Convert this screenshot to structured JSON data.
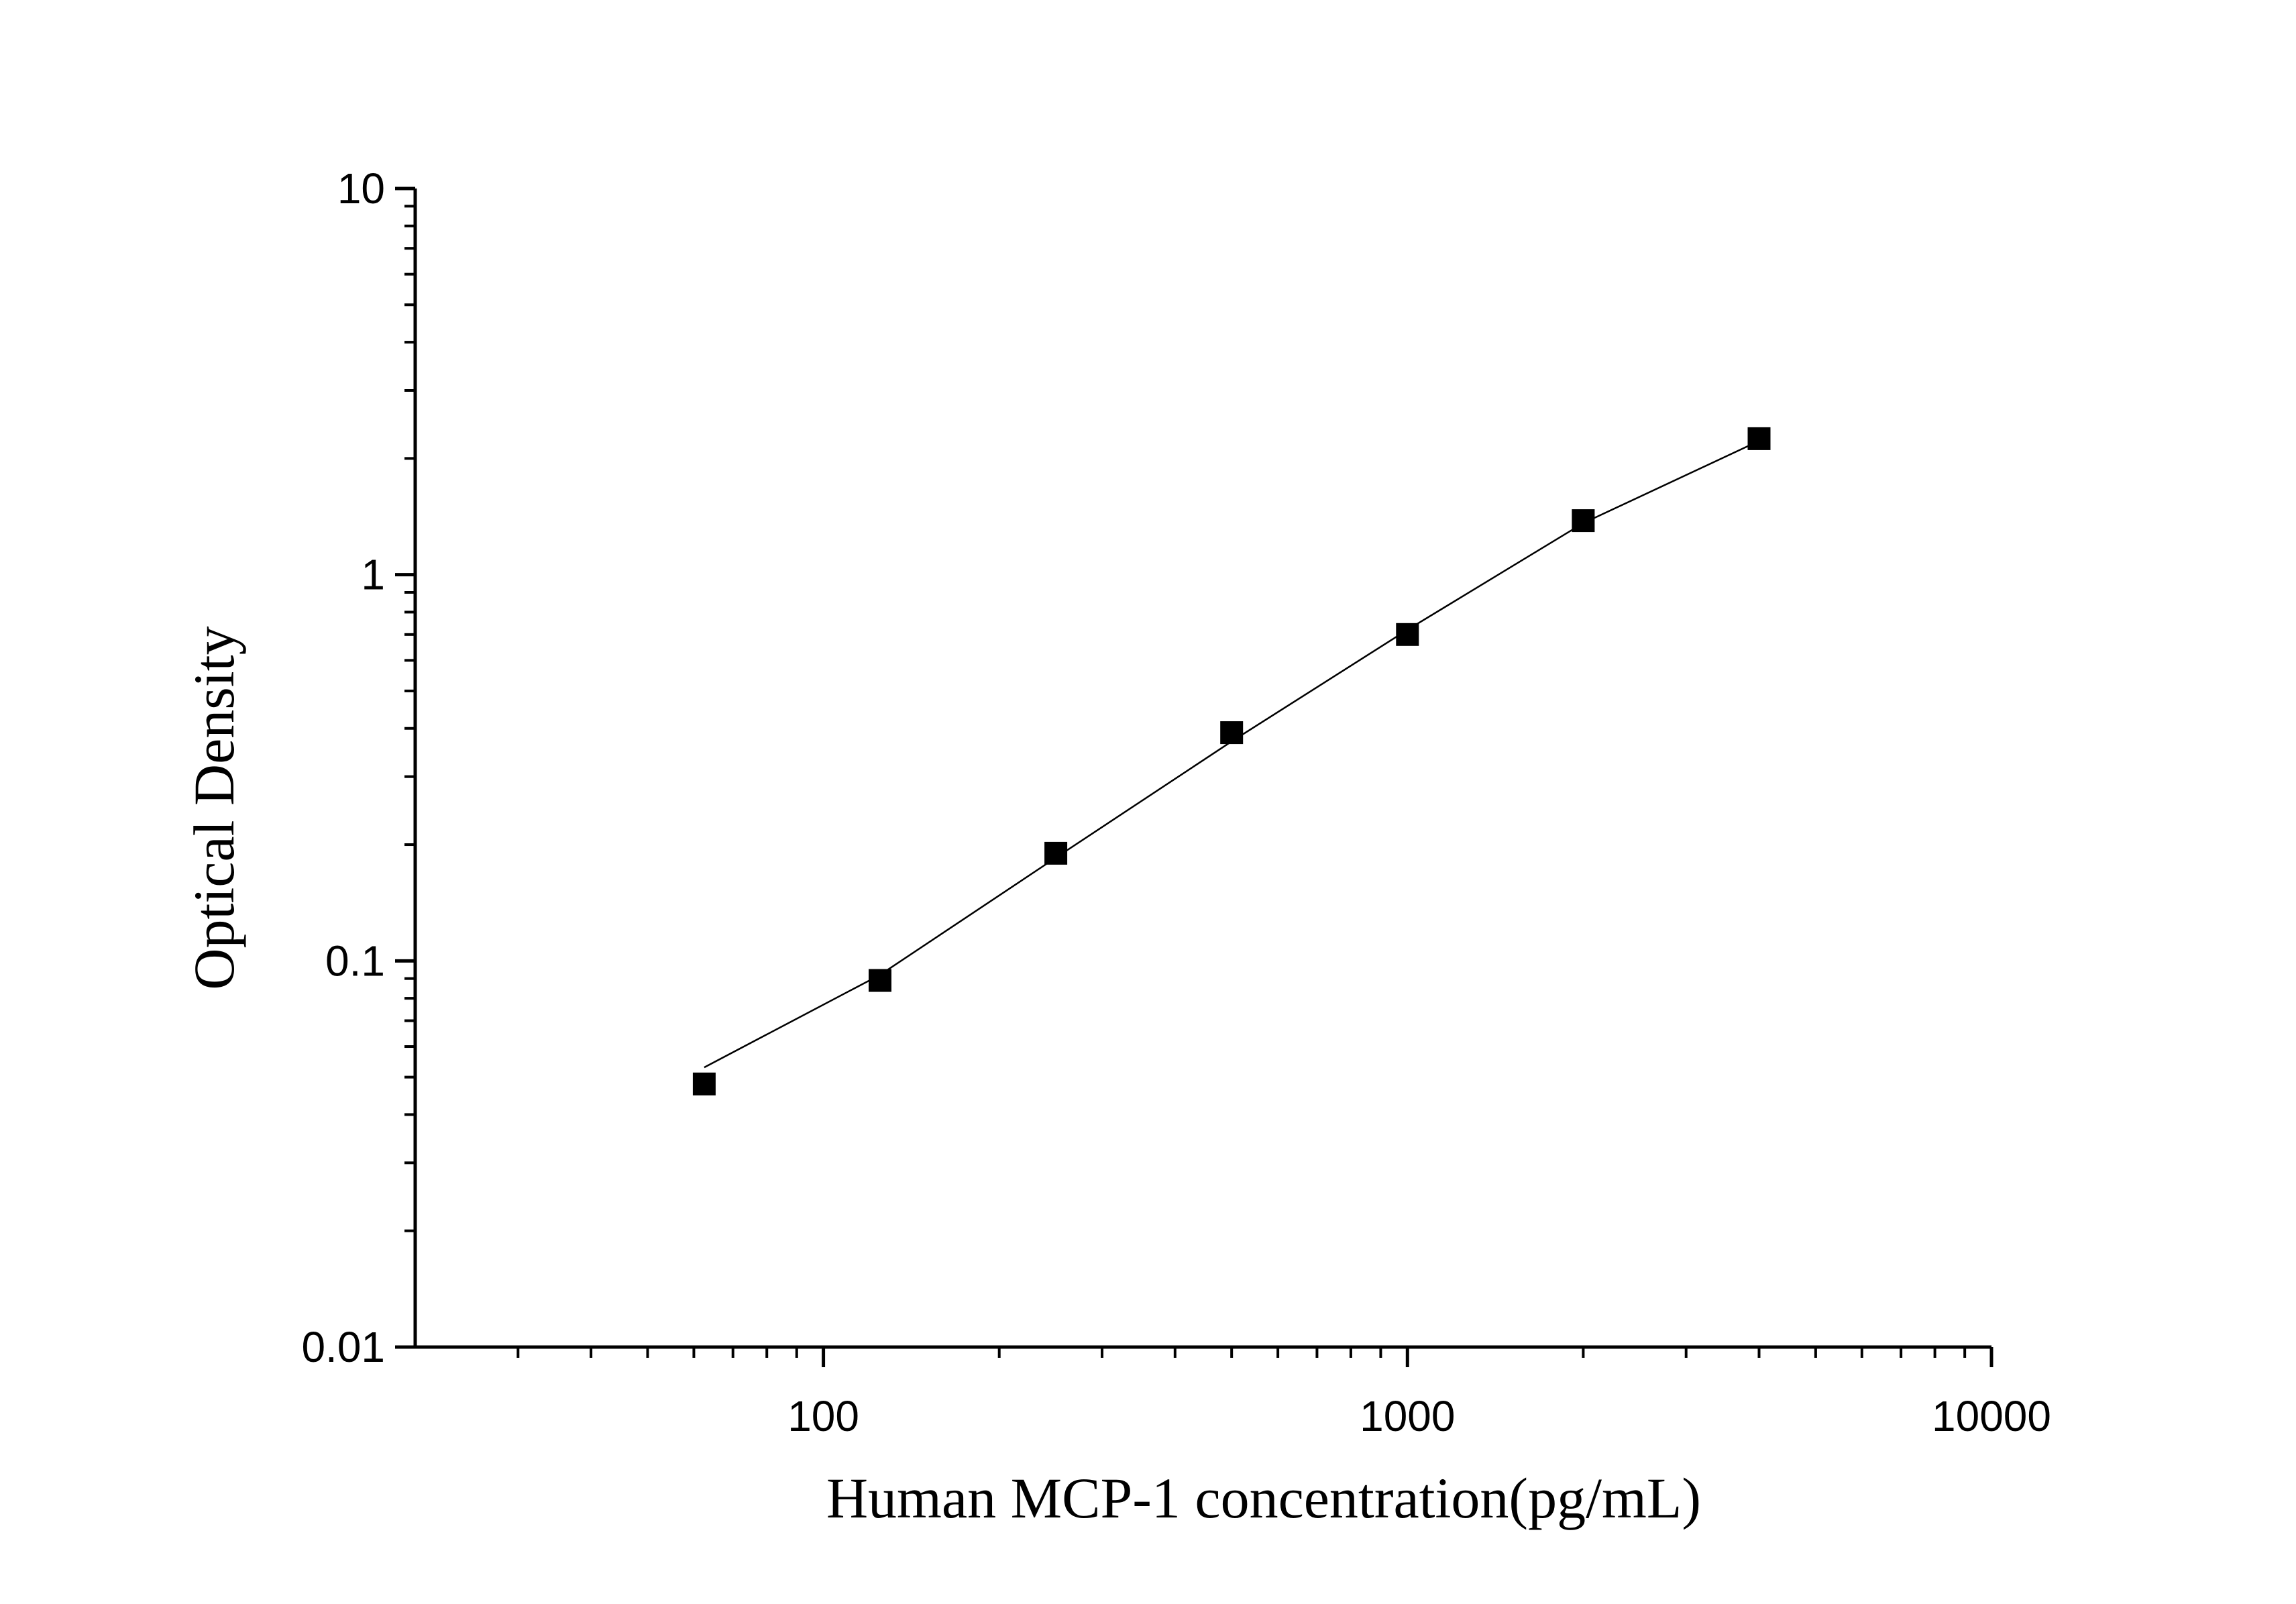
{
  "chart_data": {
    "type": "scatter",
    "title": "",
    "xlabel": "Human MCP-1 concentration(pg/mL)",
    "ylabel": "Optical Density",
    "x_scale": "log",
    "y_scale": "log",
    "xlim": [
      20,
      10000
    ],
    "ylim": [
      0.01,
      10
    ],
    "x_ticks": [
      {
        "value": 100,
        "label": "100"
      },
      {
        "value": 1000,
        "label": "1000"
      },
      {
        "value": 10000,
        "label": "10000"
      }
    ],
    "y_ticks": [
      {
        "value": 0.01,
        "label": "0.01"
      },
      {
        "value": 0.1,
        "label": "0.1"
      },
      {
        "value": 1,
        "label": "1"
      },
      {
        "value": 10,
        "label": "10"
      }
    ],
    "grid": false,
    "legend": "none",
    "series": [
      {
        "marker": "square",
        "color": "#000000",
        "points": [
          {
            "x": 62.5,
            "y": 0.048
          },
          {
            "x": 125,
            "y": 0.089
          },
          {
            "x": 250,
            "y": 0.19
          },
          {
            "x": 500,
            "y": 0.39
          },
          {
            "x": 1000,
            "y": 0.7
          },
          {
            "x": 2000,
            "y": 1.38
          },
          {
            "x": 4000,
            "y": 2.25
          }
        ]
      }
    ],
    "fit_line": {
      "color": "#000000",
      "points": [
        {
          "x": 62.5,
          "y": 0.053
        },
        {
          "x": 125,
          "y": 0.092
        },
        {
          "x": 250,
          "y": 0.185
        },
        {
          "x": 500,
          "y": 0.37
        },
        {
          "x": 1000,
          "y": 0.72
        },
        {
          "x": 2000,
          "y": 1.36
        },
        {
          "x": 4000,
          "y": 2.22
        }
      ]
    }
  }
}
